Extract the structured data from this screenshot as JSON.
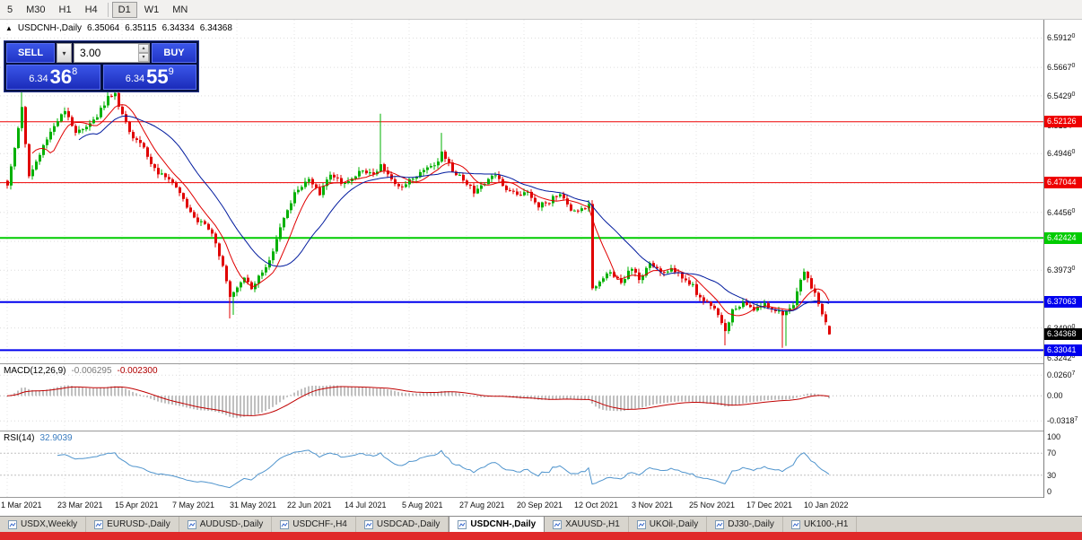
{
  "toolbar": {
    "timeframes": [
      {
        "label": "5",
        "active": false
      },
      {
        "label": "M30",
        "active": false
      },
      {
        "label": "H1",
        "active": false
      },
      {
        "label": "H4",
        "active": false
      },
      {
        "label": "D1",
        "active": true,
        "sep_before": true
      },
      {
        "label": "W1",
        "active": false
      },
      {
        "label": "MN",
        "active": false
      }
    ]
  },
  "chart_header": {
    "symbol": "USDCNH-,Daily",
    "open": "6.35064",
    "high": "6.35115",
    "low": "6.34334",
    "close": "6.34368"
  },
  "trade_panel": {
    "sell_label": "SELL",
    "buy_label": "BUY",
    "volume": "3.00",
    "sell_price": {
      "prefix": "6.34",
      "big": "36",
      "sup": "8"
    },
    "buy_price": {
      "prefix": "6.34",
      "big": "55",
      "sup": "9"
    }
  },
  "chart_data": {
    "type": "candlestick",
    "symbol": "USDCNH-",
    "timeframe": "Daily",
    "current_ohlc": {
      "open": 6.35064,
      "high": 6.35115,
      "low": 6.34334,
      "close": 6.34368
    },
    "price_range": [
      6.3195,
      6.6065
    ],
    "y_ticks": [
      {
        "text": "6.59120",
        "value": 6.5912,
        "show": true
      },
      {
        "text": "6.56670",
        "value": 6.5667,
        "show": true
      },
      {
        "text": "6.54290",
        "value": 6.5429,
        "show": true
      },
      {
        "text": "6.51840",
        "value": 6.5184,
        "show": true
      },
      {
        "text": "6.49460",
        "value": 6.4946,
        "show": true
      },
      {
        "text": "6.47010",
        "value": 6.4701,
        "show": false
      },
      {
        "text": "6.44560",
        "value": 6.4456,
        "show": true
      },
      {
        "text": "6.42140",
        "value": 6.4214,
        "show": false
      },
      {
        "text": "6.39730",
        "value": 6.3973,
        "show": true
      },
      {
        "text": "6.37310",
        "value": 6.3731,
        "show": false
      },
      {
        "text": "6.34900",
        "value": 6.349,
        "show": true
      },
      {
        "text": "6.32420",
        "value": 6.3242,
        "show": true
      }
    ],
    "hlines": [
      {
        "price": 6.52126,
        "label": "6.52126",
        "color": "#ee0000",
        "width": 1
      },
      {
        "price": 6.47044,
        "label": "6.47044",
        "color": "#ee0000",
        "width": 1
      },
      {
        "price": 6.42424,
        "label": "6.42424",
        "color": "#00cc00",
        "width": 2
      },
      {
        "price": 6.37063,
        "label": "6.37063",
        "color": "#0000ee",
        "width": 2
      },
      {
        "price": 6.33041,
        "label": "6.33041",
        "color": "#0000ee",
        "width": 2
      }
    ],
    "current_price_tag": {
      "price": 6.34368,
      "label": "6.34368",
      "bg": "#000000"
    },
    "candles_count": 230,
    "seed": 97,
    "noise": 0.004,
    "close_waypoints": [
      [
        0,
        6.47
      ],
      [
        2,
        6.5
      ],
      [
        4,
        6.532
      ],
      [
        6,
        6.474
      ],
      [
        9,
        6.495
      ],
      [
        12,
        6.513
      ],
      [
        14,
        6.522
      ],
      [
        16,
        6.532
      ],
      [
        19,
        6.511
      ],
      [
        22,
        6.518
      ],
      [
        25,
        6.526
      ],
      [
        28,
        6.541
      ],
      [
        30,
        6.544
      ],
      [
        32,
        6.526
      ],
      [
        35,
        6.507
      ],
      [
        38,
        6.5
      ],
      [
        41,
        6.481
      ],
      [
        44,
        6.474
      ],
      [
        47,
        6.466
      ],
      [
        50,
        6.451
      ],
      [
        52,
        6.44
      ],
      [
        55,
        6.436
      ],
      [
        58,
        6.421
      ],
      [
        60,
        6.399
      ],
      [
        62,
        6.374
      ],
      [
        64,
        6.384
      ],
      [
        66,
        6.391
      ],
      [
        68,
        6.38
      ],
      [
        70,
        6.391
      ],
      [
        73,
        6.406
      ],
      [
        76,
        6.432
      ],
      [
        79,
        6.455
      ],
      [
        81,
        6.466
      ],
      [
        84,
        6.474
      ],
      [
        87,
        6.462
      ],
      [
        90,
        6.477
      ],
      [
        93,
        6.47
      ],
      [
        96,
        6.474
      ],
      [
        99,
        6.481
      ],
      [
        102,
        6.477
      ],
      [
        104,
        6.486
      ],
      [
        107,
        6.474
      ],
      [
        110,
        6.466
      ],
      [
        113,
        6.474
      ],
      [
        116,
        6.481
      ],
      [
        119,
        6.485
      ],
      [
        121,
        6.495
      ],
      [
        124,
        6.481
      ],
      [
        127,
        6.474
      ],
      [
        130,
        6.462
      ],
      [
        133,
        6.47
      ],
      [
        136,
        6.477
      ],
      [
        139,
        6.466
      ],
      [
        142,
        6.459
      ],
      [
        145,
        6.462
      ],
      [
        148,
        6.451
      ],
      [
        151,
        6.455
      ],
      [
        154,
        6.462
      ],
      [
        157,
        6.447
      ],
      [
        160,
        6.447
      ],
      [
        162,
        6.451
      ],
      [
        163,
        6.381
      ],
      [
        165,
        6.388
      ],
      [
        168,
        6.395
      ],
      [
        171,
        6.388
      ],
      [
        174,
        6.399
      ],
      [
        176,
        6.391
      ],
      [
        179,
        6.402
      ],
      [
        182,
        6.395
      ],
      [
        185,
        6.399
      ],
      [
        188,
        6.391
      ],
      [
        191,
        6.384
      ],
      [
        192,
        6.376
      ],
      [
        195,
        6.369
      ],
      [
        198,
        6.361
      ],
      [
        200,
        6.346
      ],
      [
        202,
        6.365
      ],
      [
        205,
        6.369
      ],
      [
        208,
        6.365
      ],
      [
        211,
        6.369
      ],
      [
        214,
        6.365
      ],
      [
        216,
        6.358
      ],
      [
        219,
        6.369
      ],
      [
        221,
        6.391
      ],
      [
        222,
        6.395
      ],
      [
        224,
        6.384
      ],
      [
        226,
        6.369
      ],
      [
        228,
        6.354
      ],
      [
        229,
        6.3437
      ]
    ],
    "spikes": [
      {
        "i": 4,
        "high": 6.549
      },
      {
        "i": 28,
        "high": 6.551
      },
      {
        "i": 30,
        "high": 6.553
      },
      {
        "i": 104,
        "high": 6.528
      },
      {
        "i": 121,
        "high": 6.512
      },
      {
        "i": 62,
        "low": 6.357
      },
      {
        "i": 63,
        "low": 6.36
      },
      {
        "i": 200,
        "low": 6.3345
      },
      {
        "i": 216,
        "low": 6.3325
      },
      {
        "i": 217,
        "low": 6.334
      }
    ],
    "ma": [
      {
        "period": 8,
        "color": "#e00000"
      },
      {
        "period": 21,
        "color": "#001a9e"
      }
    ]
  },
  "macd": {
    "name": "MACD(12,26,9)",
    "value1": "-0.006295",
    "value2": "-0.002300",
    "fast": 12,
    "slow": 26,
    "signal": 9,
    "range": [
      -0.044,
      0.04
    ],
    "ticks": [
      {
        "text": "0.02607",
        "value": 0.02607
      },
      {
        "text": "0.00",
        "value": 0
      },
      {
        "text": "-0.03187",
        "value": -0.03187
      }
    ]
  },
  "rsi": {
    "name": "RSI(14)",
    "value": "32.9039",
    "period": 14,
    "levels": [
      70,
      30
    ],
    "ticks": [
      {
        "text": "100",
        "value": 100
      },
      {
        "text": "70",
        "value": 70
      },
      {
        "text": "30",
        "value": 30
      },
      {
        "text": "0",
        "value": 0
      }
    ]
  },
  "x_axis": {
    "candles_per_label": 16,
    "labels": [
      "1 Mar 2021",
      "23 Mar 2021",
      "15 Apr 2021",
      "7 May 2021",
      "31 May 2021",
      "22 Jun 2021",
      "14 Jul 2021",
      "5 Aug 2021",
      "27 Aug 2021",
      "20 Sep 2021",
      "12 Oct 2021",
      "3 Nov 2021",
      "25 Nov 2021",
      "17 Dec 2021",
      "10 Jan 2022"
    ]
  },
  "tabs": [
    {
      "label": "USDX,Weekly",
      "active": false
    },
    {
      "label": "EURUSD-,Daily",
      "active": false
    },
    {
      "label": "AUDUSD-,Daily",
      "active": false
    },
    {
      "label": "USDCHF-,H4",
      "active": false
    },
    {
      "label": "USDCAD-,Daily",
      "active": false
    },
    {
      "label": "USDCNH-,Daily",
      "active": true
    },
    {
      "label": "XAUUSD-,H1",
      "active": false
    },
    {
      "label": "UKOil-,Daily",
      "active": false
    },
    {
      "label": "DJ30-,Daily",
      "active": false
    },
    {
      "label": "UK100-,H1",
      "active": false
    }
  ],
  "colors": {
    "up": "#00b000",
    "down": "#e00000",
    "grid": "#dcdcdc",
    "macd_hist": "#c0c0c0",
    "macd_signal": "#c00000",
    "rsi_line": "#4f94cd",
    "red_strip": "#e02a2a"
  }
}
